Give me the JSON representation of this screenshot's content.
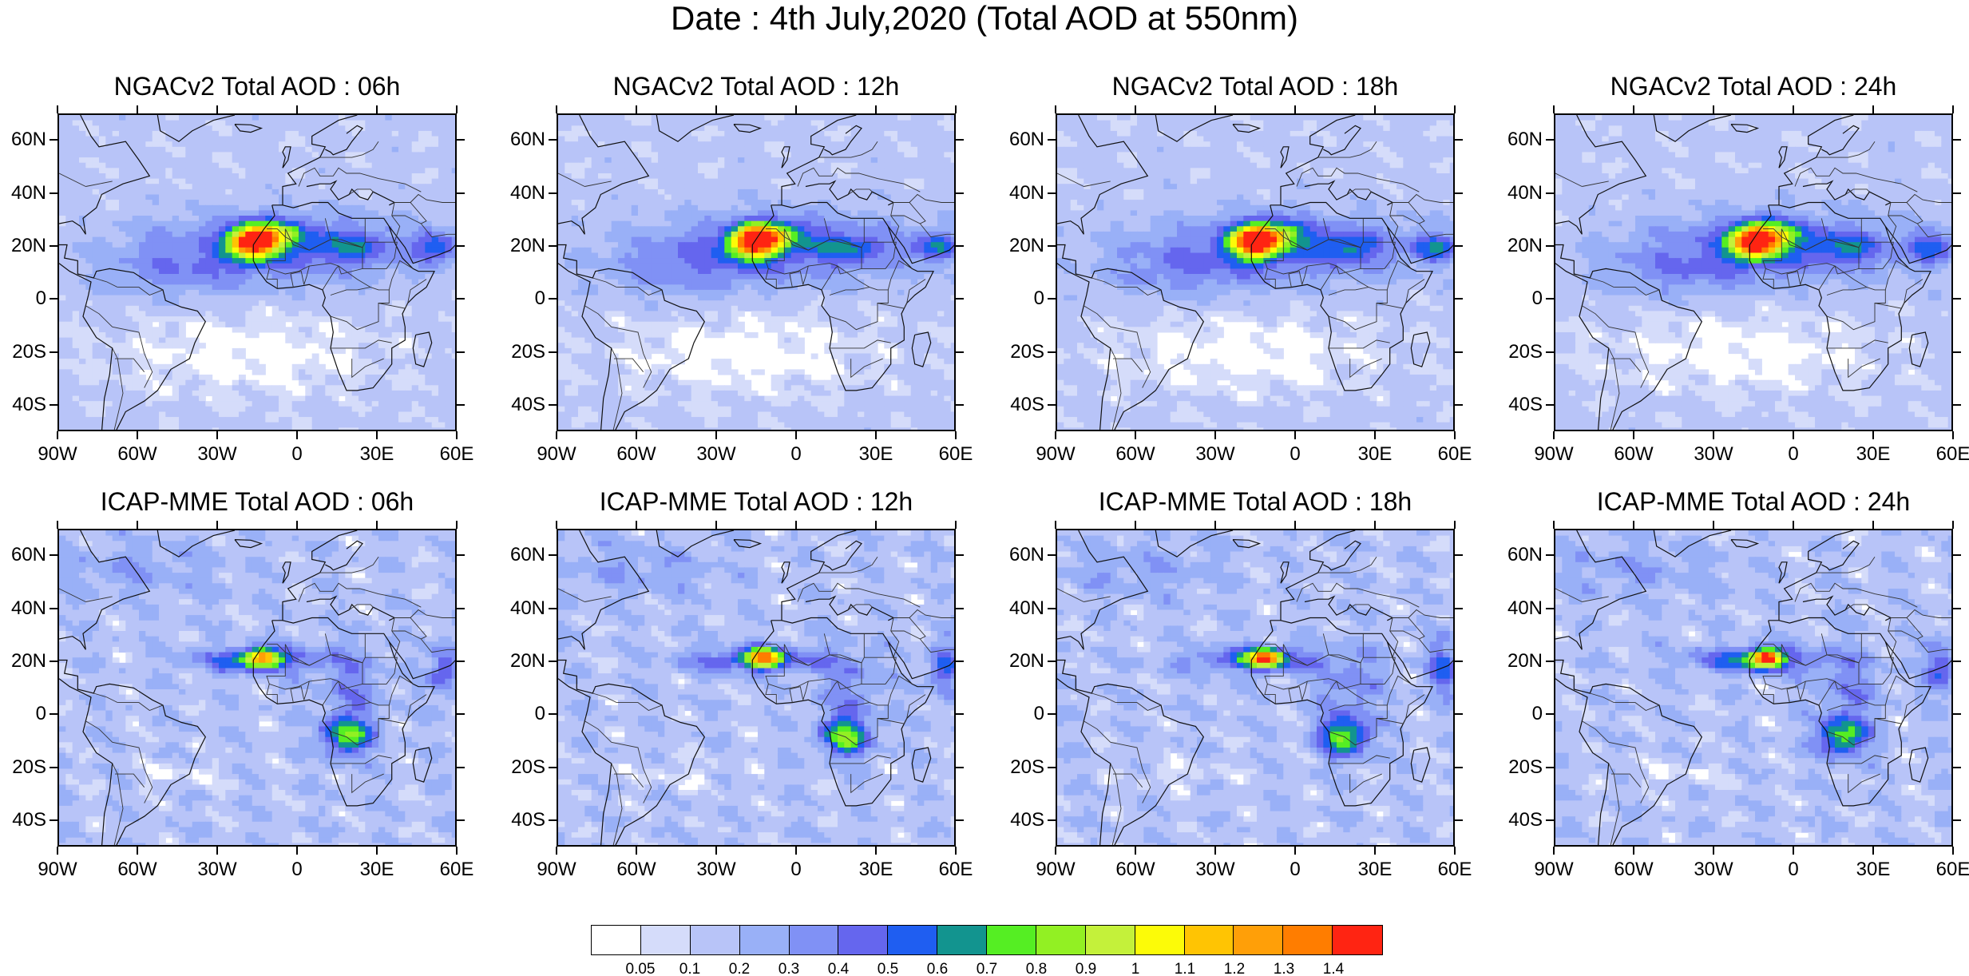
{
  "title": "Date : 4th July,2020 (Total AOD at 550nm)",
  "panels": [
    {
      "title": "NGACv2 Total AOD : 06h",
      "model": "ngac",
      "hour": 6
    },
    {
      "title": "NGACv2 Total AOD : 12h",
      "model": "ngac",
      "hour": 12
    },
    {
      "title": "NGACv2 Total AOD : 18h",
      "model": "ngac",
      "hour": 18
    },
    {
      "title": "NGACv2 Total AOD : 24h",
      "model": "ngac",
      "hour": 24
    },
    {
      "title": "ICAP-MME Total AOD : 06h",
      "model": "icap",
      "hour": 6
    },
    {
      "title": "ICAP-MME Total AOD : 12h",
      "model": "icap",
      "hour": 12
    },
    {
      "title": "ICAP-MME Total AOD : 18h",
      "model": "icap",
      "hour": 18
    },
    {
      "title": "ICAP-MME Total AOD : 24h",
      "model": "icap",
      "hour": 24
    }
  ],
  "axes": {
    "lat_labels": [
      "60N",
      "40N",
      "20N",
      "0",
      "20S",
      "40S"
    ],
    "lat_values": [
      60,
      40,
      20,
      0,
      -20,
      -40
    ],
    "lon_labels": [
      "90W",
      "60W",
      "30W",
      "0",
      "30E",
      "60E"
    ],
    "lon_values": [
      -90,
      -60,
      -30,
      0,
      30,
      60
    ],
    "lat_range": [
      -50,
      70
    ],
    "lon_range": [
      -90,
      60
    ]
  },
  "colorbar": {
    "colors": [
      "#ffffff",
      "#d5dcfa",
      "#b8c4f8",
      "#99b0f7",
      "#8091f5",
      "#6566ee",
      "#1f5ef1",
      "#12948f",
      "#55ee23",
      "#92f023",
      "#c4f13a",
      "#fcfb08",
      "#ffc403",
      "#ff9f08",
      "#ff7d00",
      "#ff2412"
    ],
    "labels": [
      "0.05",
      "0.1",
      "0.2",
      "0.3",
      "0.4",
      "0.5",
      "0.6",
      "0.7",
      "0.8",
      "0.9",
      "1",
      "1.1",
      "1.2",
      "1.3",
      "1.4"
    ]
  }
}
